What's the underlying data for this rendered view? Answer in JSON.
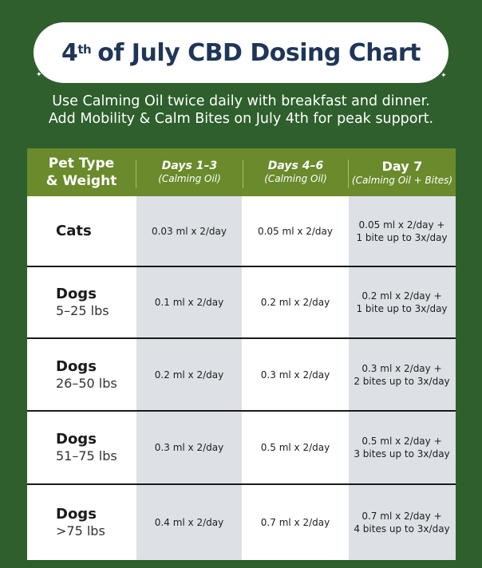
{
  "title": {
    "main_before": "4",
    "sup": "th",
    "main_after": "of July CBD Dosing Chart"
  },
  "intro": {
    "line1": "Use Calming Oil twice daily with breakfast and dinner.",
    "line2": "Add Mobility & Calm Bites on July 4th for peak support."
  },
  "table": {
    "headers": {
      "pet_line1": "Pet Type",
      "pet_line2": "& Weight",
      "d13_title": "Days 1–3",
      "d13_sub": "(Calming Oil)",
      "d46_title": "Days 4–6",
      "d46_sub": "(Calming Oil)",
      "d7_title": "Day 7",
      "d7_sub": "(Calming Oil + Bites)"
    },
    "rows": [
      {
        "name": "Cats",
        "weight": "",
        "d13": "0.03 ml x 2/day",
        "d46": "0.05 ml x 2/day",
        "d7_line1": "0.05 ml x 2/day +",
        "d7_line2": "1 bite up to 3x/day"
      },
      {
        "name": "Dogs",
        "weight": "5–25 lbs",
        "d13": "0.1 ml x 2/day",
        "d46": "0.2 ml x 2/day",
        "d7_line1": "0.2 ml x 2/day +",
        "d7_line2": "1 bite up to 3x/day"
      },
      {
        "name": "Dogs",
        "weight": "26–50 lbs",
        "d13": "0.2 ml x 2/day",
        "d46": "0.3 ml x 2/day",
        "d7_line1": "0.3 ml x 2/day +",
        "d7_line2": "2 bites up to 3x/day"
      },
      {
        "name": "Dogs",
        "weight": "51–75 lbs",
        "d13": "0.3 ml x 2/day",
        "d46": "0.5 ml x 2/day",
        "d7_line1": "0.5 ml x 2/day +",
        "d7_line2": "3 bites up to 3x/day"
      },
      {
        "name": "Dogs",
        "weight": ">75 lbs",
        "d13": "0.4 ml x 2/day",
        "d46": "0.7 ml x 2/day",
        "d7_line1": "0.7 ml x 2/day +",
        "d7_line2": "4 bites up to 3x/day"
      }
    ]
  },
  "colors": {
    "background": "#2e5f2c",
    "header": "#6a8a2b",
    "title_text": "#1f3658",
    "shaded_column": "#dde1e6"
  }
}
